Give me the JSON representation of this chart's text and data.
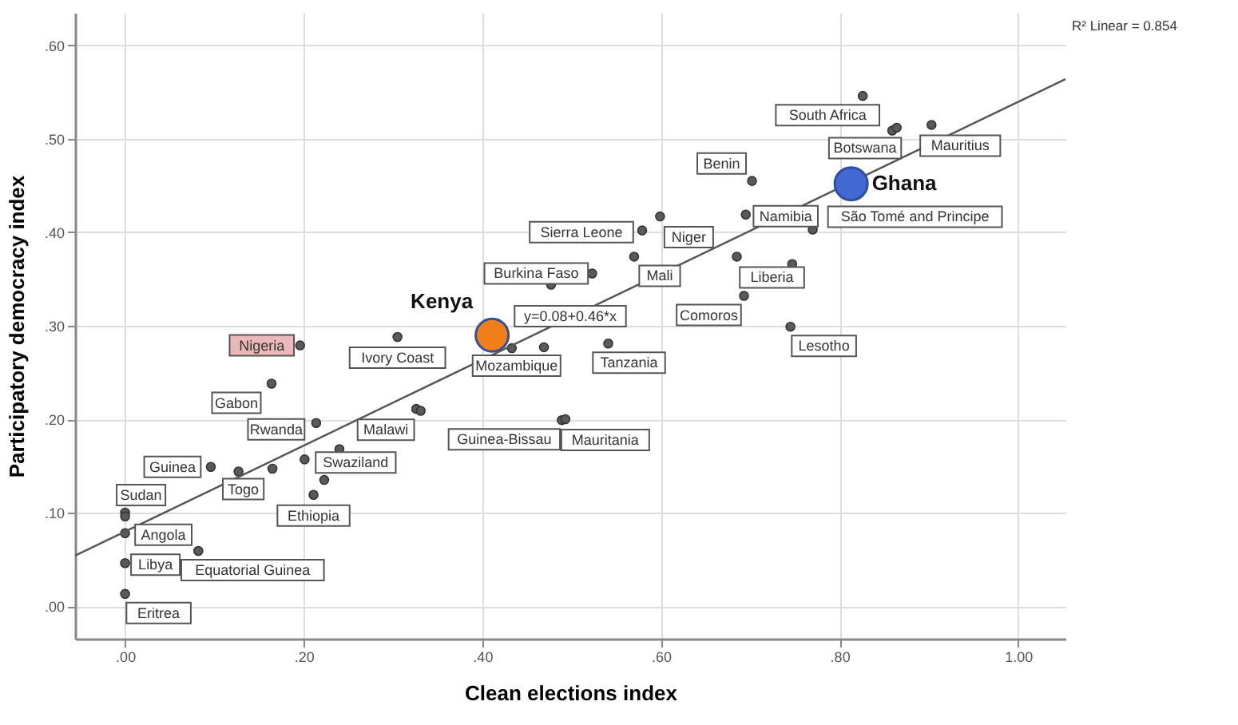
{
  "chart_data": {
    "type": "scatter",
    "xlabel": "Clean elections index",
    "ylabel": "Participatory democracy index",
    "xlim": [
      -0.056,
      1.053
    ],
    "ylim": [
      -0.035,
      0.635
    ],
    "xticks": [
      {
        "value": 0,
        "label": ".00"
      },
      {
        "value": 0.2,
        "label": ".20"
      },
      {
        "value": 0.4,
        "label": ".40"
      },
      {
        "value": 0.6,
        "label": ".60"
      },
      {
        "value": 0.8,
        "label": ".80"
      },
      {
        "value": 1.0,
        "label": "1.00"
      }
    ],
    "yticks": [
      {
        "value": 0,
        "label": ".00"
      },
      {
        "value": 0.1,
        "label": ".10"
      },
      {
        "value": 0.2,
        "label": ".20"
      },
      {
        "value": 0.3,
        "label": ".30"
      },
      {
        "value": 0.4,
        "label": ".40"
      },
      {
        "value": 0.5,
        "label": ".50"
      },
      {
        "value": 0.6,
        "label": ".60"
      }
    ],
    "grid": true,
    "legend": false,
    "marker": "circle",
    "series": [
      {
        "color": "#5a5a5a",
        "x": [
          0.826,
          0.859,
          0.903,
          0.702,
          0.695,
          0.77,
          0.599,
          0.579,
          0.57,
          0.523,
          0.685,
          0.693,
          0.745,
          0.541,
          0.433,
          0.305,
          0.196,
          0.164,
          0.214,
          0.326,
          0.489,
          0.493,
          0.096,
          0.127,
          0.201,
          0.211,
          0,
          0,
          0,
          0.082,
          0,
          0.469,
          0.331,
          0.165,
          0.24,
          0.223,
          0,
          0.477,
          0.864,
          0.747
        ],
        "values": [
          0.546,
          0.509,
          0.515,
          0.455,
          0.419,
          0.403,
          0.417,
          0.402,
          0.374,
          0.356,
          0.374,
          0.332,
          0.299,
          0.281,
          0.276,
          0.288,
          0.279,
          0.238,
          0.196,
          0.211,
          0.199,
          0.2,
          0.149,
          0.144,
          0.157,
          0.119,
          0.1,
          0.078,
          0.046,
          0.059,
          0.013,
          0.277,
          0.209,
          0.147,
          0.168,
          0.135,
          0.096,
          0.344,
          0.512,
          0.366
        ]
      },
      {
        "type": "line",
        "marker": "none",
        "color": "#555555",
        "x": [
          -0.056,
          1.053
        ],
        "values": [
          0.054,
          0.564
        ]
      },
      {
        "name": "Kenya",
        "color": "#f07f1a",
        "x": [
          0.411
        ],
        "values": [
          0.29
        ]
      },
      {
        "name": "Ghana",
        "color": "#4169d1",
        "x": [
          0.813
        ],
        "values": [
          0.452
        ]
      }
    ],
    "annotations": [
      {
        "text": "South Africa",
        "x": 0.826,
        "y": 0.546
      },
      {
        "text": "Botswana",
        "x": 0.859,
        "y": 0.509
      },
      {
        "text": "Mauritius",
        "x": 0.903,
        "y": 0.515
      },
      {
        "text": "Benin",
        "x": 0.702,
        "y": 0.455
      },
      {
        "text": "Namibia",
        "x": 0.695,
        "y": 0.419
      },
      {
        "text": "São Tomé and Principe",
        "x": 0.77,
        "y": 0.403
      },
      {
        "text": "Niger",
        "x": 0.599,
        "y": 0.417
      },
      {
        "text": "Sierra Leone",
        "x": 0.579,
        "y": 0.402
      },
      {
        "text": "Mali",
        "x": 0.57,
        "y": 0.374
      },
      {
        "text": "Burkina Faso",
        "x": 0.523,
        "y": 0.356
      },
      {
        "text": "Liberia",
        "x": 0.685,
        "y": 0.374
      },
      {
        "text": "Comoros",
        "x": 0.693,
        "y": 0.332
      },
      {
        "text": "Lesotho",
        "x": 0.745,
        "y": 0.299
      },
      {
        "text": "Tanzania",
        "x": 0.541,
        "y": 0.281
      },
      {
        "text": "Mozambique",
        "x": 0.433,
        "y": 0.276
      },
      {
        "text": "Ivory Coast",
        "x": 0.305,
        "y": 0.288
      },
      {
        "text": "Nigeria",
        "x": 0.196,
        "y": 0.279
      },
      {
        "text": "Gabon",
        "x": 0.164,
        "y": 0.238
      },
      {
        "text": "Rwanda",
        "x": 0.214,
        "y": 0.196
      },
      {
        "text": "Malawi",
        "x": 0.326,
        "y": 0.211
      },
      {
        "text": "Guinea-Bissau",
        "x": 0.489,
        "y": 0.199
      },
      {
        "text": "Mauritania",
        "x": 0.493,
        "y": 0.2
      },
      {
        "text": "Guinea",
        "x": 0.096,
        "y": 0.149
      },
      {
        "text": "Togo",
        "x": 0.127,
        "y": 0.144
      },
      {
        "text": "Swaziland",
        "x": 0.201,
        "y": 0.157
      },
      {
        "text": "Ethiopia",
        "x": 0.211,
        "y": 0.119
      },
      {
        "text": "Sudan",
        "x": 0,
        "y": 0.1
      },
      {
        "text": "Angola",
        "x": 0,
        "y": 0.078
      },
      {
        "text": "Libya",
        "x": 0,
        "y": 0.046
      },
      {
        "text": "Equatorial Guinea",
        "x": 0.082,
        "y": 0.059
      },
      {
        "text": "Eritrea",
        "x": 0,
        "y": 0.013
      },
      "y=0.08+0.46*x",
      "R² Linear = 0.854"
    ]
  }
}
